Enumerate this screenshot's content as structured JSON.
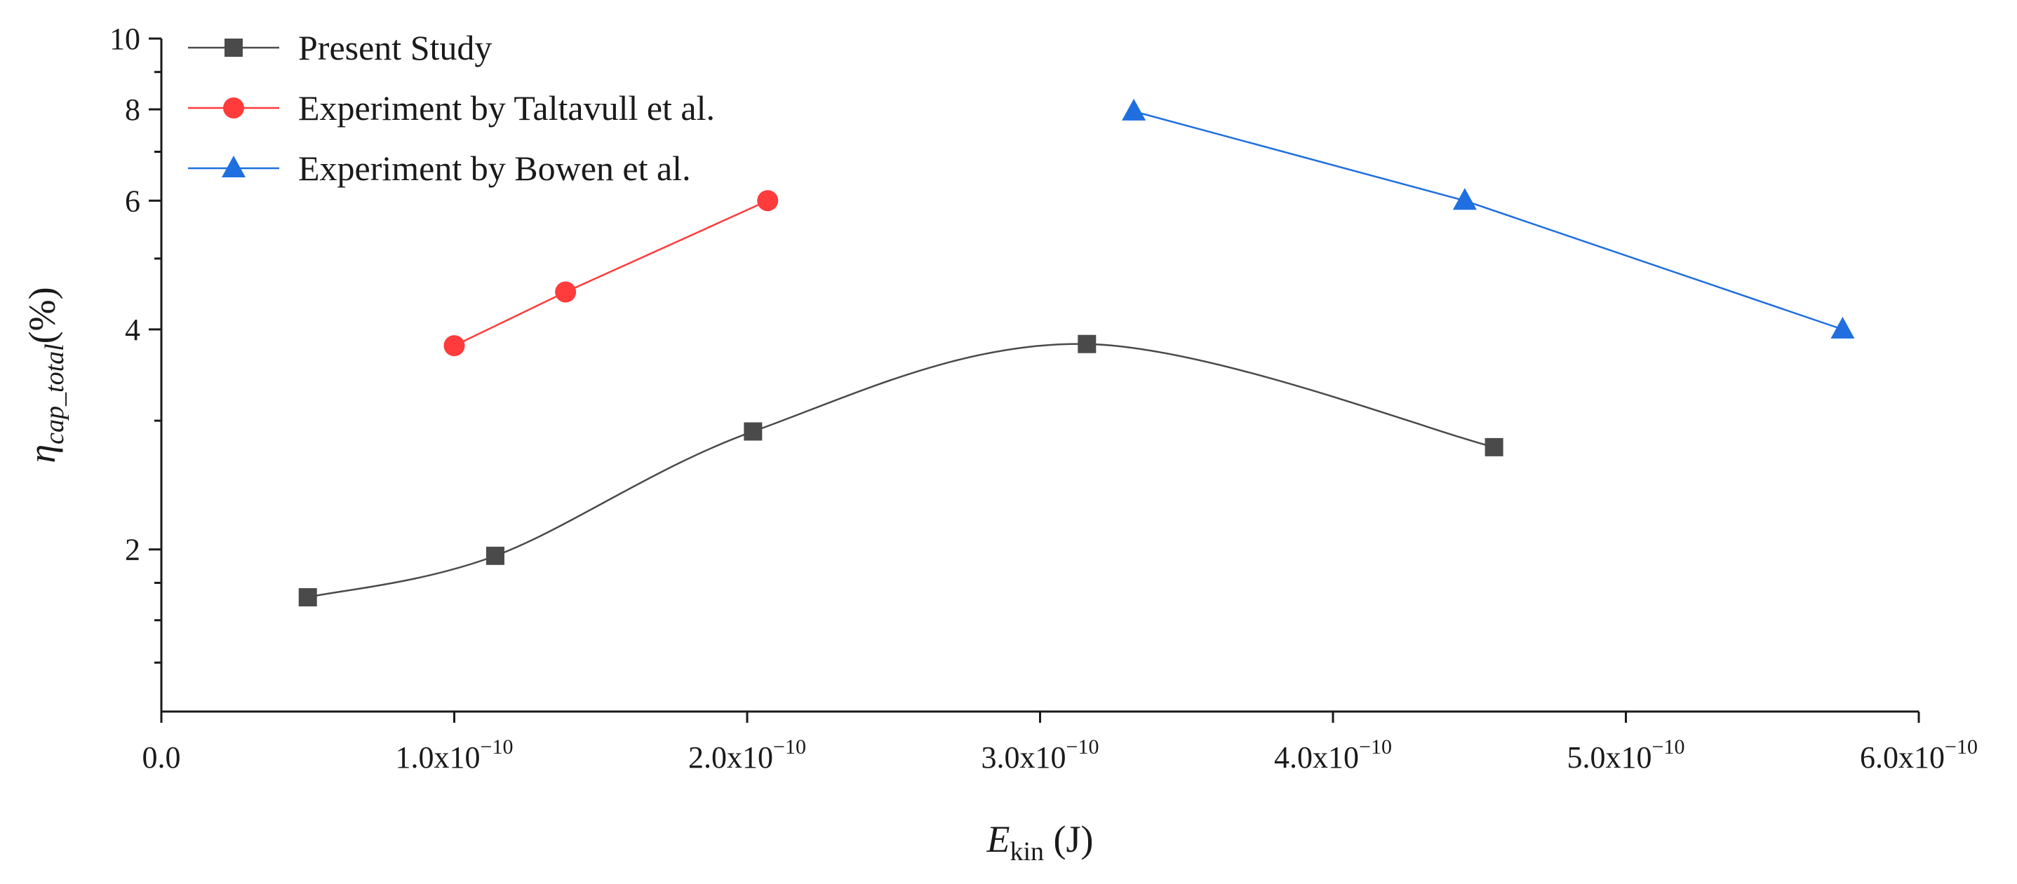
{
  "chart_data": {
    "type": "line",
    "title": "",
    "xlabel": {
      "main": "E",
      "sub": "kin",
      "unit": " (J)"
    },
    "ylabel": {
      "main": "η",
      "sub": "cap_total",
      "unit": "(%)"
    },
    "xlim": [
      0,
      6e-10
    ],
    "ylim": [
      1.2,
      10
    ],
    "yscale": "log",
    "x_ticks": [
      {
        "value": 0,
        "mantissa": "0.0",
        "exp": ""
      },
      {
        "value": 1e-10,
        "mantissa": "1.0x10",
        "exp": "−10"
      },
      {
        "value": 2e-10,
        "mantissa": "2.0x10",
        "exp": "−10"
      },
      {
        "value": 3e-10,
        "mantissa": "3.0x10",
        "exp": "−10"
      },
      {
        "value": 4e-10,
        "mantissa": "4.0x10",
        "exp": "−10"
      },
      {
        "value": 5e-10,
        "mantissa": "5.0x10",
        "exp": "−10"
      },
      {
        "value": 6e-10,
        "mantissa": "6.0x10",
        "exp": "−10"
      }
    ],
    "y_ticks": [
      {
        "value": 2,
        "label": "2"
      },
      {
        "value": 4,
        "label": "4"
      },
      {
        "value": 6,
        "label": "6"
      },
      {
        "value": 8,
        "label": "8"
      },
      {
        "value": 10,
        "label": "10"
      }
    ],
    "y_minor_ticks": [
      1.4,
      1.6,
      1.8,
      3,
      5,
      7,
      9
    ],
    "legend_position": "top-left",
    "series": [
      {
        "name": "Present Study",
        "color": "#4a4a4a",
        "marker": "square",
        "smooth": true,
        "x": [
          5e-11,
          1.14e-10,
          2.02e-10,
          3.16e-10,
          4.55e-10
        ],
        "y": [
          1.72,
          1.96,
          2.9,
          3.82,
          2.76
        ]
      },
      {
        "name": "Experiment by Taltavull et al.",
        "color": "#ff3b3b",
        "marker": "circle",
        "smooth": false,
        "x": [
          1e-10,
          1.38e-10,
          2.07e-10
        ],
        "y": [
          3.8,
          4.5,
          6.0
        ]
      },
      {
        "name": "Experiment by Bowen et al.",
        "color": "#1f6fe0",
        "marker": "triangle",
        "smooth": false,
        "x": [
          3.32e-10,
          4.45e-10,
          5.74e-10
        ],
        "y": [
          7.95,
          6.0,
          4.0
        ]
      }
    ]
  }
}
